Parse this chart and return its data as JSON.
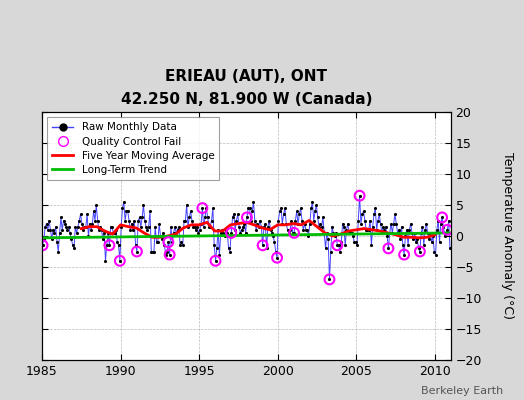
{
  "title": "ERIEAU (AUT), ONT",
  "subtitle": "42.250 N, 81.900 W (Canada)",
  "ylabel": "Temperature Anomaly (°C)",
  "watermark": "Berkeley Earth",
  "xlim": [
    1985,
    2011
  ],
  "ylim": [
    -20,
    20
  ],
  "yticks": [
    -20,
    -15,
    -10,
    -5,
    0,
    5,
    10,
    15,
    20
  ],
  "xticks": [
    1985,
    1990,
    1995,
    2000,
    2005,
    2010
  ],
  "bg_color": "#d8d8d8",
  "plot_bg_color": "#ffffff",
  "raw_color": "#4444ff",
  "qc_color": "#ff00ff",
  "ma_color": "#ff0000",
  "trend_color": "#00bb00",
  "raw_data_x": [
    1985.042,
    1985.125,
    1985.208,
    1985.292,
    1985.375,
    1985.458,
    1985.542,
    1985.625,
    1985.708,
    1985.792,
    1985.875,
    1985.958,
    1986.042,
    1986.125,
    1986.208,
    1986.292,
    1986.375,
    1986.458,
    1986.542,
    1986.625,
    1986.708,
    1986.792,
    1986.875,
    1986.958,
    1987.042,
    1987.125,
    1987.208,
    1987.292,
    1987.375,
    1987.458,
    1987.542,
    1987.625,
    1987.708,
    1987.792,
    1987.875,
    1987.958,
    1988.042,
    1988.125,
    1988.208,
    1988.292,
    1988.375,
    1988.458,
    1988.542,
    1988.625,
    1988.708,
    1988.792,
    1988.875,
    1988.958,
    1989.042,
    1989.125,
    1989.208,
    1989.292,
    1989.375,
    1989.458,
    1989.542,
    1989.625,
    1989.708,
    1989.792,
    1989.875,
    1989.958,
    1990.042,
    1990.125,
    1990.208,
    1990.292,
    1990.375,
    1990.458,
    1990.542,
    1990.625,
    1990.708,
    1990.792,
    1990.875,
    1990.958,
    1991.042,
    1991.125,
    1991.208,
    1991.292,
    1991.375,
    1991.458,
    1991.542,
    1991.625,
    1991.708,
    1991.792,
    1991.875,
    1991.958,
    1992.042,
    1992.125,
    1992.208,
    1992.292,
    1992.375,
    1992.458,
    1992.542,
    1992.625,
    1992.708,
    1992.792,
    1992.875,
    1992.958,
    1993.042,
    1993.125,
    1993.208,
    1993.292,
    1993.375,
    1993.458,
    1993.542,
    1993.625,
    1993.708,
    1993.792,
    1993.875,
    1993.958,
    1994.042,
    1994.125,
    1994.208,
    1994.292,
    1994.375,
    1994.458,
    1994.542,
    1994.625,
    1994.708,
    1994.792,
    1994.875,
    1994.958,
    1995.042,
    1995.125,
    1995.208,
    1995.292,
    1995.375,
    1995.458,
    1995.542,
    1995.625,
    1995.708,
    1995.792,
    1995.875,
    1995.958,
    1996.042,
    1996.125,
    1996.208,
    1996.292,
    1996.375,
    1996.458,
    1996.542,
    1996.625,
    1996.708,
    1996.792,
    1996.875,
    1996.958,
    1997.042,
    1997.125,
    1997.208,
    1997.292,
    1997.375,
    1997.458,
    1997.542,
    1997.625,
    1997.708,
    1997.792,
    1997.875,
    1997.958,
    1998.042,
    1998.125,
    1998.208,
    1998.292,
    1998.375,
    1998.458,
    1998.542,
    1998.625,
    1998.708,
    1998.792,
    1998.875,
    1998.958,
    1999.042,
    1999.125,
    1999.208,
    1999.292,
    1999.375,
    1999.458,
    1999.542,
    1999.625,
    1999.708,
    1999.792,
    1999.875,
    1999.958,
    2000.042,
    2000.125,
    2000.208,
    2000.292,
    2000.375,
    2000.458,
    2000.542,
    2000.625,
    2000.708,
    2000.792,
    2000.875,
    2000.958,
    2001.042,
    2001.125,
    2001.208,
    2001.292,
    2001.375,
    2001.458,
    2001.542,
    2001.625,
    2001.708,
    2001.792,
    2001.875,
    2001.958,
    2002.042,
    2002.125,
    2002.208,
    2002.292,
    2002.375,
    2002.458,
    2002.542,
    2002.625,
    2002.708,
    2002.792,
    2002.875,
    2002.958,
    2003.042,
    2003.125,
    2003.208,
    2003.292,
    2003.375,
    2003.458,
    2003.542,
    2003.625,
    2003.708,
    2003.792,
    2003.875,
    2003.958,
    2004.042,
    2004.125,
    2004.208,
    2004.292,
    2004.375,
    2004.458,
    2004.542,
    2004.625,
    2004.708,
    2004.792,
    2004.875,
    2004.958,
    2005.042,
    2005.125,
    2005.208,
    2005.292,
    2005.375,
    2005.458,
    2005.542,
    2005.625,
    2005.708,
    2005.792,
    2005.875,
    2005.958,
    2006.042,
    2006.125,
    2006.208,
    2006.292,
    2006.375,
    2006.458,
    2006.542,
    2006.625,
    2006.708,
    2006.792,
    2006.875,
    2006.958,
    2007.042,
    2007.125,
    2007.208,
    2007.292,
    2007.375,
    2007.458,
    2007.542,
    2007.625,
    2007.708,
    2007.792,
    2007.875,
    2007.958,
    2008.042,
    2008.125,
    2008.208,
    2008.292,
    2008.375,
    2008.458,
    2008.542,
    2008.625,
    2008.708,
    2008.792,
    2008.875,
    2008.958,
    2009.042,
    2009.125,
    2009.208,
    2009.292,
    2009.375,
    2009.458,
    2009.542,
    2009.625,
    2009.708,
    2009.792,
    2009.875,
    2009.958,
    2010.042,
    2010.125,
    2010.208,
    2010.292,
    2010.375,
    2010.458,
    2010.542,
    2010.625,
    2010.708,
    2010.792,
    2010.875,
    2010.958
  ],
  "raw_data_y": [
    -1.5,
    -0.5,
    1.5,
    2.0,
    1.0,
    2.5,
    1.0,
    -0.5,
    1.0,
    0.5,
    1.5,
    -1.0,
    -2.5,
    0.5,
    3.0,
    1.0,
    2.5,
    2.0,
    1.5,
    1.0,
    1.5,
    0.5,
    -0.5,
    -1.5,
    -2.0,
    1.5,
    0.5,
    1.5,
    2.5,
    3.5,
    2.0,
    1.0,
    1.5,
    1.5,
    3.5,
    0.0,
    2.0,
    1.0,
    2.0,
    4.0,
    2.5,
    5.0,
    2.5,
    1.0,
    1.5,
    1.0,
    -0.5,
    0.5,
    -4.0,
    -1.5,
    0.5,
    -1.5,
    1.5,
    1.5,
    0.5,
    0.5,
    1.0,
    -1.0,
    -1.5,
    -4.0,
    1.5,
    4.5,
    5.5,
    2.5,
    4.0,
    4.0,
    2.5,
    1.0,
    2.0,
    1.0,
    2.5,
    -1.5,
    -2.5,
    2.5,
    3.0,
    1.5,
    3.0,
    5.0,
    2.5,
    1.5,
    1.0,
    1.5,
    4.0,
    -2.5,
    -2.5,
    -2.5,
    1.5,
    -1.0,
    -1.0,
    2.0,
    0.0,
    -0.5,
    0.5,
    -1.5,
    -3.0,
    -2.5,
    -1.0,
    -3.0,
    1.5,
    -1.0,
    0.5,
    1.5,
    0.5,
    1.0,
    1.5,
    -1.5,
    -1.0,
    -1.5,
    2.5,
    2.5,
    5.0,
    1.5,
    3.0,
    4.0,
    2.5,
    1.5,
    1.5,
    1.0,
    1.5,
    0.5,
    1.0,
    2.0,
    4.5,
    1.5,
    3.0,
    4.5,
    3.0,
    1.5,
    1.5,
    2.5,
    4.5,
    -1.5,
    -4.0,
    -2.0,
    1.0,
    -3.0,
    0.5,
    1.0,
    0.5,
    0.0,
    1.0,
    0.5,
    -2.0,
    -2.5,
    0.5,
    3.0,
    3.5,
    1.0,
    2.5,
    3.5,
    1.5,
    0.5,
    1.0,
    1.5,
    2.0,
    0.5,
    3.0,
    4.5,
    4.5,
    2.5,
    4.0,
    5.5,
    2.5,
    1.0,
    2.0,
    1.5,
    2.5,
    1.5,
    -1.5,
    1.5,
    2.0,
    -2.0,
    1.5,
    2.5,
    1.0,
    0.5,
    0.0,
    -1.0,
    -2.5,
    -3.5,
    2.5,
    4.0,
    4.5,
    2.0,
    3.5,
    4.5,
    2.0,
    1.0,
    0.5,
    1.0,
    2.5,
    0.5,
    0.5,
    2.5,
    4.0,
    2.0,
    3.5,
    4.5,
    2.5,
    1.0,
    2.0,
    1.0,
    1.0,
    0.0,
    2.0,
    4.5,
    5.5,
    2.5,
    4.0,
    5.0,
    3.0,
    1.5,
    2.0,
    1.5,
    3.0,
    0.5,
    -2.0,
    0.5,
    -0.5,
    -7.0,
    -2.5,
    1.5,
    0.5,
    0.0,
    0.5,
    -1.5,
    -1.5,
    -2.5,
    -1.0,
    2.0,
    1.5,
    -1.5,
    1.0,
    2.0,
    0.5,
    0.5,
    0.5,
    0.0,
    -1.0,
    -1.0,
    -1.5,
    2.5,
    6.5,
    2.0,
    3.5,
    4.0,
    2.5,
    1.0,
    1.0,
    1.0,
    2.5,
    -1.5,
    1.5,
    3.5,
    4.5,
    1.0,
    2.5,
    3.5,
    2.0,
    0.5,
    1.5,
    1.0,
    1.5,
    0.0,
    -2.0,
    0.5,
    2.0,
    0.5,
    2.0,
    3.5,
    2.0,
    0.5,
    1.0,
    -0.5,
    1.5,
    -1.5,
    -3.0,
    0.0,
    1.0,
    -1.5,
    1.0,
    2.0,
    0.5,
    -0.5,
    0.5,
    -1.0,
    -0.5,
    -2.0,
    -2.5,
    0.5,
    1.5,
    -1.5,
    1.0,
    2.0,
    0.5,
    -0.5,
    0.5,
    -1.0,
    0.0,
    -2.5,
    -3.0,
    1.0,
    2.5,
    -1.0,
    2.0,
    3.0,
    1.5,
    0.0,
    0.5,
    1.0,
    2.5,
    -2.0
  ],
  "qc_fail_points": [
    [
      1985.042,
      -1.5
    ],
    [
      1989.292,
      -1.5
    ],
    [
      1989.958,
      -4.0
    ],
    [
      1991.042,
      -2.5
    ],
    [
      1993.042,
      -1.0
    ],
    [
      1993.125,
      -3.0
    ],
    [
      1995.208,
      4.5
    ],
    [
      1996.042,
      -4.0
    ],
    [
      1997.042,
      0.5
    ],
    [
      1998.042,
      3.0
    ],
    [
      1999.042,
      -1.5
    ],
    [
      1999.958,
      -3.5
    ],
    [
      2001.042,
      0.5
    ],
    [
      2003.292,
      -7.0
    ],
    [
      2003.792,
      -1.5
    ],
    [
      2005.208,
      6.5
    ],
    [
      2007.042,
      -2.0
    ],
    [
      2008.042,
      -3.0
    ],
    [
      2009.042,
      -2.5
    ],
    [
      2010.458,
      3.0
    ],
    [
      2010.792,
      1.0
    ]
  ],
  "ma_x": [
    1987.5,
    1988.0,
    1988.5,
    1989.0,
    1989.5,
    1990.0,
    1990.5,
    1991.0,
    1991.5,
    1992.0,
    1992.5,
    1993.0,
    1993.5,
    1994.0,
    1994.5,
    1995.0,
    1995.5,
    1996.0,
    1996.5,
    1997.0,
    1997.5,
    1998.0,
    1998.5,
    1999.0,
    1999.5,
    2000.0,
    2000.5,
    2001.0,
    2001.5,
    2002.0,
    2002.5,
    2003.0,
    2003.5,
    2004.0,
    2004.5,
    2005.0,
    2005.5,
    2006.0,
    2006.5,
    2007.0,
    2007.5,
    2008.0,
    2008.5,
    2009.0,
    2009.5,
    2010.0
  ],
  "ma_y": [
    1.2,
    1.5,
    1.5,
    0.8,
    0.3,
    1.8,
    1.5,
    1.3,
    0.5,
    -0.2,
    -0.2,
    0.0,
    0.3,
    1.3,
    1.8,
    1.8,
    2.2,
    0.8,
    0.8,
    1.8,
    2.0,
    2.2,
    1.8,
    1.3,
    1.0,
    1.8,
    1.8,
    2.0,
    1.8,
    2.5,
    1.5,
    0.5,
    0.0,
    0.3,
    0.8,
    1.0,
    1.2,
    1.0,
    0.8,
    0.5,
    0.2,
    -0.2,
    -0.2,
    -0.3,
    -0.2,
    0.2
  ],
  "trend_x": [
    1985.0,
    2011.0
  ],
  "trend_y": [
    -0.3,
    0.5
  ]
}
